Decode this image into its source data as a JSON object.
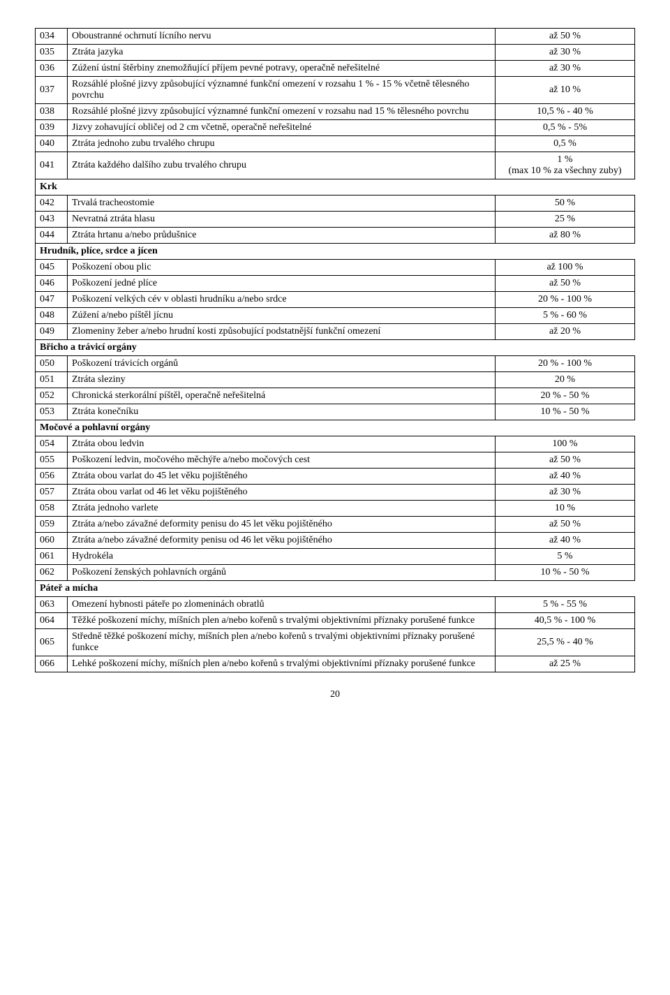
{
  "rows": [
    {
      "code": "034",
      "desc": "Oboustranné ochrnutí lícního nervu",
      "val": "až 50 %"
    },
    {
      "code": "035",
      "desc": "Ztráta jazyka",
      "val": "až 30 %"
    },
    {
      "code": "036",
      "desc": "Zúžení ústní štěrbiny znemožňující příjem pevné potravy, operačně neřešitelné",
      "val": "až 30 %"
    },
    {
      "code": "037",
      "desc": "Rozsáhlé plošné jizvy způsobující významné funkční omezení v rozsahu 1 % - 15 % včetně tělesného povrchu",
      "val": "až 10 %"
    },
    {
      "code": "038",
      "desc": "Rozsáhlé plošné jizvy způsobující významné funkční omezení v rozsahu nad 15 % tělesného povrchu",
      "val": "10,5 % - 40 %"
    },
    {
      "code": "039",
      "desc": "Jizvy zohavující obličej od 2 cm včetně, operačně neřešitelné",
      "val": "0,5 % - 5%"
    },
    {
      "code": "040",
      "desc": "Ztráta jednoho zubu trvalého chrupu",
      "val": "0,5 %"
    },
    {
      "code": "041",
      "desc": "Ztráta každého dalšího zubu trvalého chrupu",
      "val": "1 %\n(max 10 % za všechny zuby)"
    },
    {
      "section": true,
      "label": "Krk"
    },
    {
      "code": "042",
      "desc": "Trvalá tracheostomie",
      "val": "50 %"
    },
    {
      "code": "043",
      "desc": "Nevratná ztráta hlasu",
      "val": "25 %"
    },
    {
      "code": "044",
      "desc": "Ztráta hrtanu a/nebo průdušnice",
      "val": "až 80 %"
    },
    {
      "section": true,
      "label": "Hrudník, plíce, srdce a jícen"
    },
    {
      "code": "045",
      "desc": "Poškození obou plic",
      "val": "až 100 %"
    },
    {
      "code": "046",
      "desc": "Poškození jedné plíce",
      "val": "až 50 %"
    },
    {
      "code": "047",
      "desc": "Poškození velkých cév v oblasti hrudníku a/nebo srdce",
      "val": "20 % - 100 %"
    },
    {
      "code": "048",
      "desc": "Zúžení a/nebo píštěl jícnu",
      "val": "5 % - 60 %"
    },
    {
      "code": "049",
      "desc": "Zlomeniny žeber a/nebo hrudní kosti způsobující podstatnější funkční omezení",
      "val": "až 20 %"
    },
    {
      "section": true,
      "label": "Břicho a trávicí orgány"
    },
    {
      "code": "050",
      "desc": "Poškození trávicích orgánů",
      "val": "20 % - 100 %"
    },
    {
      "code": "051",
      "desc": "Ztráta sleziny",
      "val": "20 %"
    },
    {
      "code": "052",
      "desc": "Chronická sterkorální píštěl, operačně neřešitelná",
      "val": "20 % - 50 %"
    },
    {
      "code": "053",
      "desc": "Ztráta konečníku",
      "val": "10 % - 50 %"
    },
    {
      "section": true,
      "label": "Močové a pohlavní orgány"
    },
    {
      "code": "054",
      "desc": "Ztráta obou ledvin",
      "val": "100 %"
    },
    {
      "code": "055",
      "desc": "Poškození ledvin, močového měchýře a/nebo močových cest",
      "val": "až 50 %"
    },
    {
      "code": "056",
      "desc": "Ztráta obou varlat do 45 let věku pojištěného",
      "val": "až 40 %"
    },
    {
      "code": "057",
      "desc": "Ztráta obou varlat od 46 let věku pojištěného",
      "val": "až 30 %"
    },
    {
      "code": "058",
      "desc": "Ztráta jednoho varlete",
      "val": "10 %"
    },
    {
      "code": "059",
      "desc": "Ztráta a/nebo závažné deformity penisu do 45 let věku pojištěného",
      "val": "až 50 %"
    },
    {
      "code": "060",
      "desc": "Ztráta a/nebo závažné deformity penisu od 46 let věku pojištěného",
      "val": "až 40 %"
    },
    {
      "code": "061",
      "desc": "Hydrokéla",
      "val": "5 %"
    },
    {
      "code": "062",
      "desc": "Poškození ženských pohlavních orgánů",
      "val": "10 % - 50 %"
    },
    {
      "section": true,
      "label": "Páteř a mícha"
    },
    {
      "code": "063",
      "desc": "Omezení hybnosti páteře po zlomeninách obratlů",
      "val": "5 % - 55 %"
    },
    {
      "code": "064",
      "desc": "Těžké poškození míchy, míšních plen a/nebo kořenů s trvalými objektivními příznaky porušené funkce",
      "val": "40,5 % - 100 %"
    },
    {
      "code": "065",
      "desc": "Středně těžké poškození míchy, míšních plen a/nebo kořenů s trvalými objektivními příznaky porušené funkce",
      "val": "25,5 % - 40 %"
    },
    {
      "code": "066",
      "desc": "Lehké poškození míchy, míšních plen a/nebo kořenů s trvalými objektivními příznaky porušené funkce",
      "val": "až 25 %"
    }
  ],
  "page_number": "20"
}
